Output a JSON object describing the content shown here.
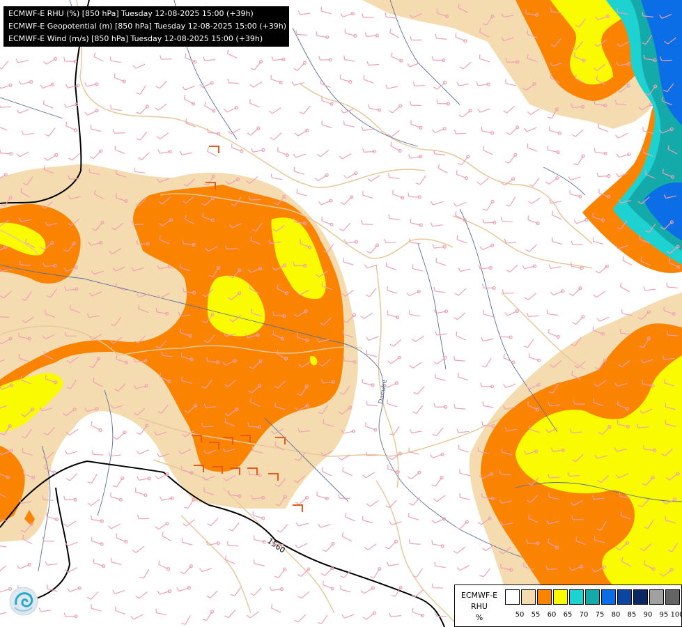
{
  "header": {
    "lines": [
      "ECMWF-E RHU (%) [850 hPa] Tuesday 12-08-2025 15:00 (+39h)",
      "ECMWF-E Geopotential (m) [850 hPa] Tuesday 12-08-2025 15:00 (+39h)",
      "ECMWF-E Wind (m/s) [850 hPa] Tuesday 12-08-2025 15:00 (+39h)"
    ]
  },
  "map": {
    "contour_label": "1560",
    "river_label": "Danube",
    "colors": {
      "background": "#ffffff",
      "c55": "#f5dcb0",
      "c60": "#fa8402",
      "c65": "#fafa00",
      "c70": "#1ed2d2",
      "c75": "#14aaaa",
      "c80": "#0c6ee6",
      "border": "#e6c89b",
      "river": "#5a6e96",
      "contour": "#000000",
      "barb_normal": "#f0a0b4",
      "barb_strong": "#e65a1e"
    }
  },
  "legend": {
    "title_lines": [
      "ECMWF-E",
      "RHU",
      "%"
    ],
    "swatch_colors": [
      "#ffffff",
      "#f5dcb0",
      "#fa8402",
      "#fafa00",
      "#1ed2d2",
      "#14aaaa",
      "#0c6ee6",
      "#0a46a0",
      "#0a2864",
      "#a0a0a0",
      "#646464"
    ],
    "ticks": [
      "50",
      "55",
      "60",
      "65",
      "70",
      "75",
      "80",
      "85",
      "90",
      "95",
      "100"
    ]
  },
  "logo": {
    "icon": "ecmwf-swirl-icon"
  }
}
